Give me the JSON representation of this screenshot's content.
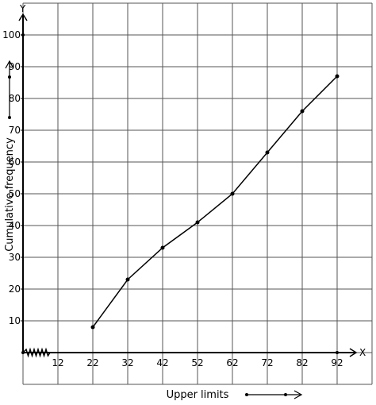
{
  "chart_data": {
    "type": "line",
    "xlabel": "Upper limits",
    "ylabel": "Cumulative frequency",
    "x_axis_letter": "X",
    "y_axis_letter": "Y",
    "x_ticks": [
      "12",
      "22",
      "32",
      "42",
      "52",
      "62",
      "72",
      "82",
      "92"
    ],
    "y_ticks": [
      "10",
      "20",
      "30",
      "40",
      "50",
      "60",
      "70",
      "80",
      "90",
      "100"
    ],
    "xlim": [
      2,
      102
    ],
    "ylim": [
      -10,
      110
    ],
    "grid": true,
    "series": [
      {
        "x": [
          22,
          32,
          42,
          52,
          62,
          72,
          82,
          92
        ],
        "y": [
          8,
          23,
          33,
          41,
          50,
          63,
          76,
          87
        ]
      }
    ],
    "annotations": [
      "axis break zigzag on x-axis near origin"
    ]
  }
}
